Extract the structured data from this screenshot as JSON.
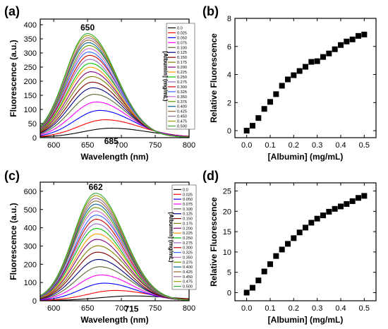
{
  "chart_data": [
    {
      "panel": "(a)",
      "type": "line",
      "xlabel": "Wavelength (nm)",
      "ylabel": "Fluorescence (a.u.)",
      "xlim": [
        580,
        800
      ],
      "ylim": [
        0,
        420
      ],
      "xticks": [
        600,
        650,
        700,
        750,
        800
      ],
      "yticks": [
        0,
        50,
        100,
        150,
        200,
        250,
        300,
        350,
        400
      ],
      "annotations": [
        "650",
        "685"
      ],
      "legend_title": "[Albumin] (mg/mL)",
      "legend_position": "right",
      "series": [
        {
          "name": "0.0",
          "peak_x": 685,
          "peak_y": 32,
          "color": "#000000"
        },
        {
          "name": "0.025",
          "peak_x": 676,
          "peak_y": 62,
          "color": "#ff0000"
        },
        {
          "name": "0.050",
          "peak_x": 668,
          "peak_y": 95,
          "color": "#0000ff"
        },
        {
          "name": "0.075",
          "peak_x": 663,
          "peak_y": 125,
          "color": "#ff00ff"
        },
        {
          "name": "0.100",
          "peak_x": 660,
          "peak_y": 152,
          "color": "#556b2f"
        },
        {
          "name": "0.125",
          "peak_x": 658,
          "peak_y": 175,
          "color": "#000080"
        },
        {
          "name": "0.150",
          "peak_x": 657,
          "peak_y": 195,
          "color": "#800000"
        },
        {
          "name": "0.175",
          "peak_x": 656,
          "peak_y": 215,
          "color": "#808000"
        },
        {
          "name": "0.200",
          "peak_x": 655,
          "peak_y": 232,
          "color": "#800080"
        },
        {
          "name": "0.225",
          "peak_x": 654,
          "peak_y": 248,
          "color": "#ff9900"
        },
        {
          "name": "0.250",
          "peak_x": 654,
          "peak_y": 262,
          "color": "#00c000"
        },
        {
          "name": "0.275",
          "peak_x": 653,
          "peak_y": 276,
          "color": "#9966cc"
        },
        {
          "name": "0.300",
          "peak_x": 653,
          "peak_y": 290,
          "color": "#cc0000"
        },
        {
          "name": "0.325",
          "peak_x": 652,
          "peak_y": 302,
          "color": "#3366ff"
        },
        {
          "name": "0.350",
          "peak_x": 652,
          "peak_y": 314,
          "color": "#cc66cc"
        },
        {
          "name": "0.375",
          "peak_x": 652,
          "peak_y": 325,
          "color": "#669900"
        },
        {
          "name": "0.400",
          "peak_x": 651,
          "peak_y": 335,
          "color": "#006699"
        },
        {
          "name": "0.425",
          "peak_x": 651,
          "peak_y": 344,
          "color": "#996633"
        },
        {
          "name": "0.450",
          "peak_x": 651,
          "peak_y": 352,
          "color": "#996699"
        },
        {
          "name": "0.475",
          "peak_x": 650,
          "peak_y": 360,
          "color": "#999900"
        },
        {
          "name": "0.500",
          "peak_x": 650,
          "peak_y": 367,
          "color": "#33aa33"
        }
      ]
    },
    {
      "panel": "(b)",
      "type": "scatter",
      "xlabel": "[Albumin] (mg/mL)",
      "ylabel": "Relative Fluorescence",
      "xlim": [
        -0.05,
        0.55
      ],
      "ylim": [
        -0.5,
        8
      ],
      "xticks": [
        0.0,
        0.1,
        0.2,
        0.3,
        0.4,
        0.5
      ],
      "yticks": [
        0,
        2,
        4,
        6,
        8
      ],
      "series": [
        {
          "x": [
            0,
            0.025,
            0.05,
            0.075,
            0.1,
            0.125,
            0.15,
            0.175,
            0.2,
            0.225,
            0.25,
            0.275,
            0.3,
            0.325,
            0.35,
            0.375,
            0.4,
            0.425,
            0.45,
            0.475,
            0.5
          ],
          "y": [
            0,
            0.35,
            0.9,
            1.55,
            2.05,
            2.6,
            3.2,
            3.65,
            3.95,
            4.25,
            4.55,
            4.9,
            4.95,
            5.25,
            5.5,
            5.8,
            6.1,
            6.35,
            6.5,
            6.75,
            6.85
          ]
        }
      ]
    },
    {
      "panel": "(c)",
      "type": "line",
      "xlabel": "Wavelength (nm)",
      "ylabel": "Fluorescence (a.u.)",
      "xlim": [
        580,
        800
      ],
      "ylim": [
        0,
        650
      ],
      "xticks": [
        600,
        650,
        700,
        750,
        800
      ],
      "yticks": [
        0,
        100,
        200,
        300,
        400,
        500,
        600
      ],
      "annotations": [
        "662",
        "715"
      ],
      "legend_title": "[Albumin] (mg/mL)",
      "legend_position": "right",
      "series": [
        {
          "name": "0.0",
          "peak_x": 715,
          "peak_y": 25,
          "color": "#000000"
        },
        {
          "name": "0.025",
          "peak_x": 690,
          "peak_y": 55,
          "color": "#ff0000"
        },
        {
          "name": "0.050",
          "peak_x": 675,
          "peak_y": 95,
          "color": "#0000ff"
        },
        {
          "name": "0.075",
          "peak_x": 670,
          "peak_y": 140,
          "color": "#ff00ff"
        },
        {
          "name": "0.100",
          "peak_x": 668,
          "peak_y": 185,
          "color": "#556b2f"
        },
        {
          "name": "0.125",
          "peak_x": 666,
          "peak_y": 225,
          "color": "#000080"
        },
        {
          "name": "0.150",
          "peak_x": 665,
          "peak_y": 265,
          "color": "#800000"
        },
        {
          "name": "0.175",
          "peak_x": 665,
          "peak_y": 300,
          "color": "#808000"
        },
        {
          "name": "0.200",
          "peak_x": 664,
          "peak_y": 335,
          "color": "#800080"
        },
        {
          "name": "0.225",
          "peak_x": 664,
          "peak_y": 365,
          "color": "#ff9900"
        },
        {
          "name": "0.250",
          "peak_x": 663,
          "peak_y": 395,
          "color": "#00c000"
        },
        {
          "name": "0.275",
          "peak_x": 663,
          "peak_y": 420,
          "color": "#9966cc"
        },
        {
          "name": "0.300",
          "peak_x": 663,
          "peak_y": 445,
          "color": "#cc0000"
        },
        {
          "name": "0.325",
          "peak_x": 663,
          "peak_y": 468,
          "color": "#3366ff"
        },
        {
          "name": "0.350",
          "peak_x": 662,
          "peak_y": 490,
          "color": "#cc66cc"
        },
        {
          "name": "0.375",
          "peak_x": 662,
          "peak_y": 510,
          "color": "#669900"
        },
        {
          "name": "0.400",
          "peak_x": 662,
          "peak_y": 528,
          "color": "#006699"
        },
        {
          "name": "0.425",
          "peak_x": 662,
          "peak_y": 545,
          "color": "#996633"
        },
        {
          "name": "0.450",
          "peak_x": 662,
          "peak_y": 560,
          "color": "#996699"
        },
        {
          "name": "0.475",
          "peak_x": 662,
          "peak_y": 575,
          "color": "#999900"
        },
        {
          "name": "0.500",
          "peak_x": 662,
          "peak_y": 588,
          "color": "#33aa33"
        }
      ]
    },
    {
      "panel": "(d)",
      "type": "scatter",
      "xlabel": "[Albumin] (mg/mL)",
      "ylabel": "Relative Fluorescence",
      "xlim": [
        -0.05,
        0.55
      ],
      "ylim": [
        -2,
        27
      ],
      "xticks": [
        0.0,
        0.1,
        0.2,
        0.3,
        0.4,
        0.5
      ],
      "yticks": [
        0,
        5,
        10,
        15,
        20,
        25
      ],
      "series": [
        {
          "x": [
            0,
            0.025,
            0.05,
            0.075,
            0.1,
            0.125,
            0.15,
            0.175,
            0.2,
            0.225,
            0.25,
            0.275,
            0.3,
            0.325,
            0.35,
            0.375,
            0.4,
            0.425,
            0.45,
            0.475,
            0.5
          ],
          "y": [
            0,
            1.2,
            3.0,
            5.2,
            7.0,
            9.0,
            10.6,
            12.0,
            13.4,
            14.8,
            16.0,
            17.2,
            18.2,
            19.0,
            19.9,
            20.6,
            21.2,
            21.8,
            22.5,
            23.3,
            23.8
          ]
        }
      ]
    }
  ]
}
